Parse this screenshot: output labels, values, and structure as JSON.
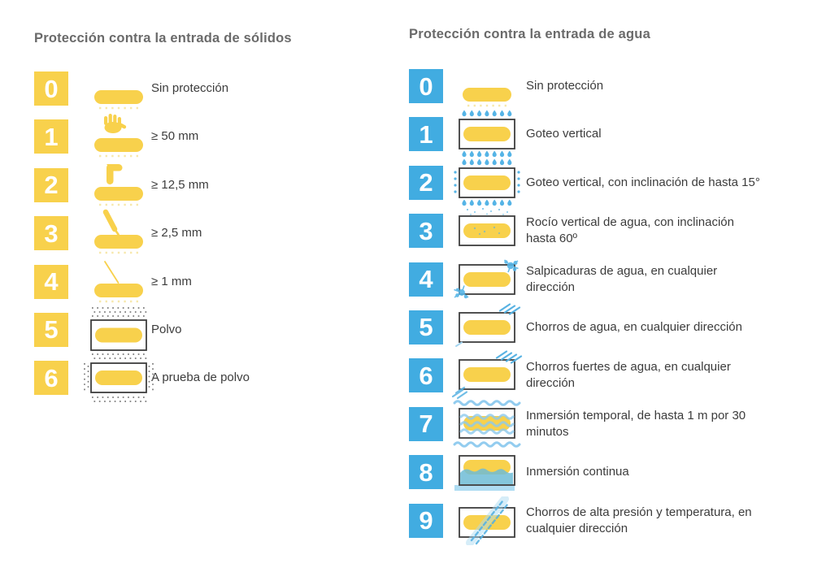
{
  "colors": {
    "yellow": "#F8D14C",
    "yellow_faint": "#F7E8AC",
    "blue": "#41ACE1",
    "drop": "#55B4E6",
    "jet": "#58B2E2",
    "jet_light": "#A5D5F0",
    "wave": "#8CC9EE",
    "wave_light": "#AEDCF2",
    "water": "#6FBCD6",
    "dust": "#7A7A7A",
    "outline": "#3E3E3E",
    "heading": "#6A6A6A",
    "text": "#3C3C3C",
    "background": "#FFFFFF"
  },
  "solids": {
    "title": "Protección contra la entrada de sólidos",
    "accent": "#F8D14C",
    "items": [
      {
        "digit": "0",
        "label": "Sin protección",
        "icon": "bar-plain-icon"
      },
      {
        "digit": "1",
        "label": "≥ 50 mm",
        "icon": "hand-over-bar-icon"
      },
      {
        "digit": "2",
        "label": "≥ 12,5 mm",
        "icon": "finger-over-bar-icon"
      },
      {
        "digit": "3",
        "label": "≥ 2,5 mm",
        "icon": "tool-over-bar-icon"
      },
      {
        "digit": "4",
        "label": "≥ 1 mm",
        "icon": "wire-over-bar-icon"
      },
      {
        "digit": "5",
        "label": "Polvo",
        "icon": "dust-protected-box-icon"
      },
      {
        "digit": "6",
        "label": "A prueba de polvo",
        "icon": "dust-tight-box-icon"
      }
    ]
  },
  "water": {
    "title": "Protección contra la entrada de agua",
    "accent": "#41ACE1",
    "items": [
      {
        "digit": "0",
        "label": "Sin protección",
        "icon": "bar-plain-icon"
      },
      {
        "digit": "1",
        "label": "Goteo vertical",
        "icon": "vertical-drip-box-icon"
      },
      {
        "digit": "2",
        "label": "Goteo vertical, con inclinación de hasta 15°",
        "icon": "tilted-drip-box-icon"
      },
      {
        "digit": "3",
        "label": "Rocío vertical de agua, con inclinación\nhasta 60º",
        "icon": "water-spray-box-icon"
      },
      {
        "digit": "4",
        "label": "Salpicaduras de agua, en cualquier\ndirección",
        "icon": "water-splash-box-icon"
      },
      {
        "digit": "5",
        "label": "Chorros de agua, en cualquier dirección",
        "icon": "water-jet-box-icon"
      },
      {
        "digit": "6",
        "label": "Chorros fuertes de agua, en cualquier\ndirección",
        "icon": "strong-water-jet-box-icon"
      },
      {
        "digit": "7",
        "label": "Inmersión temporal, de hasta 1 m por 30\nminutos",
        "icon": "temporary-immersion-box-icon"
      },
      {
        "digit": "8",
        "label": "Inmersión continua",
        "icon": "continuous-immersion-box-icon"
      },
      {
        "digit": "9",
        "label": "Chorros de alta presión y temperatura, en\ncualquier dirección",
        "icon": "high-pressure-jet-box-icon"
      }
    ]
  }
}
